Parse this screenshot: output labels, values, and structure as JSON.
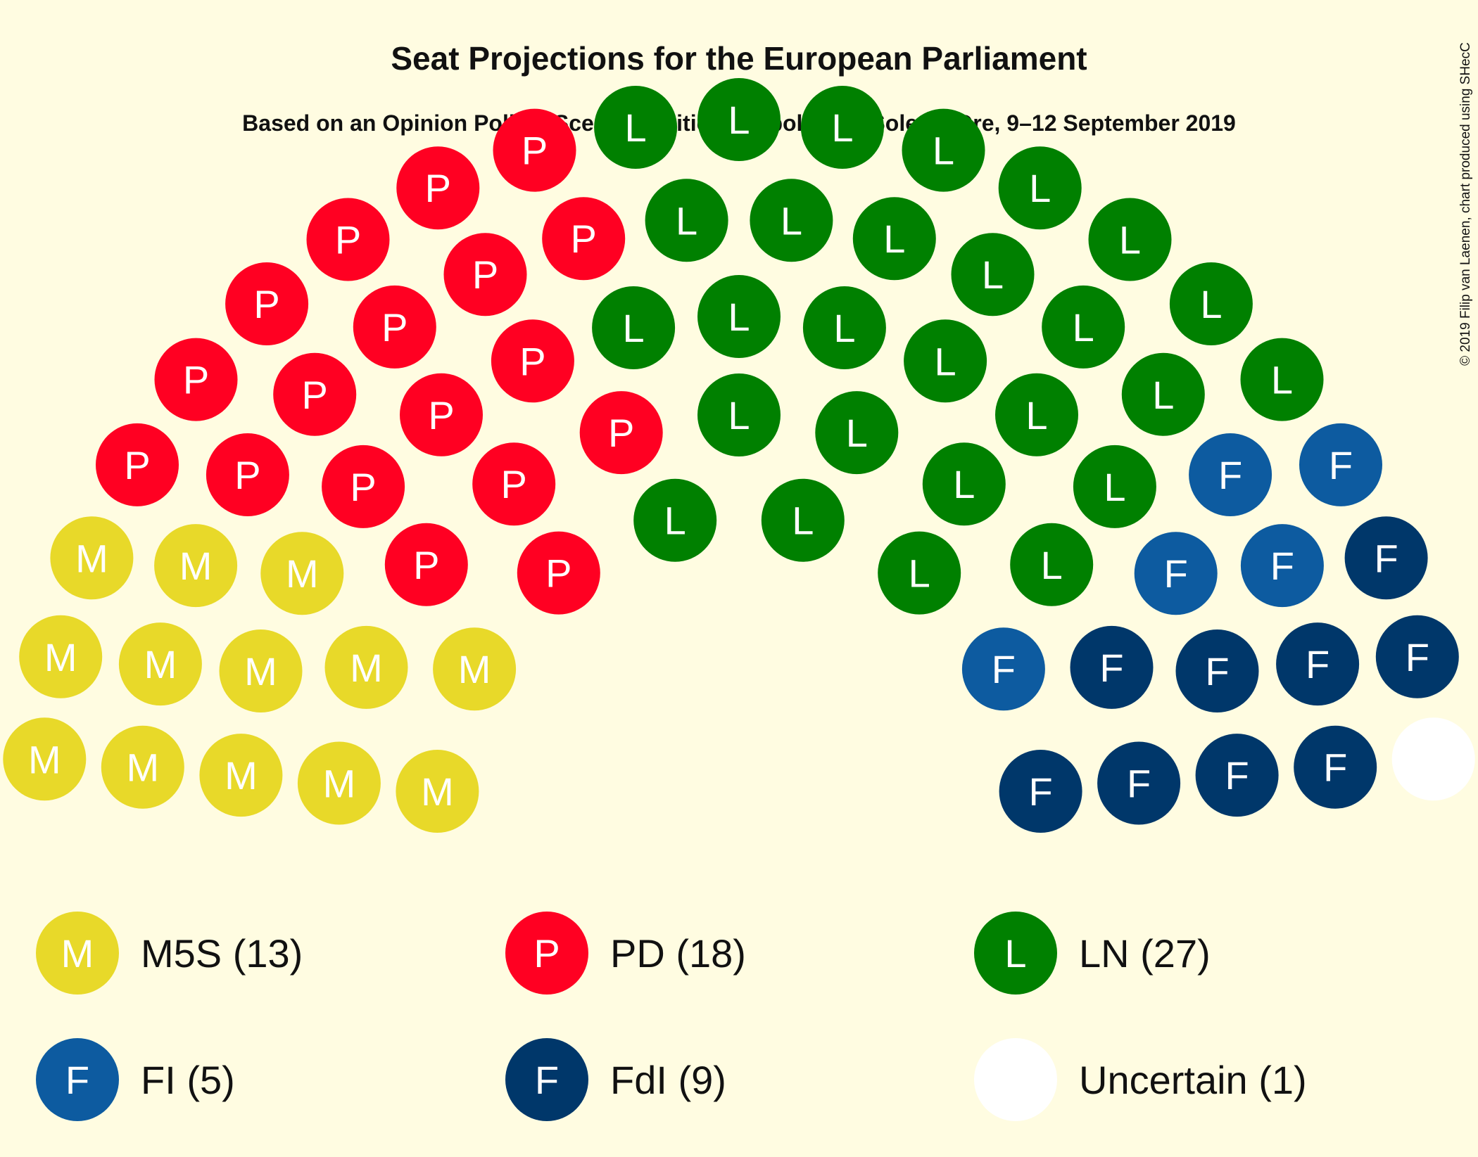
{
  "chart_data": {
    "type": "parliament",
    "title": "Seat Projections for the European Parliament",
    "subtitle": "Based on an Opinion Poll by Scenari Politici–Winpoll for Il Sole 24 Ore, 9–12 September 2019",
    "copyright": "© 2019 Filip van Laenen, chart produced using SHecC",
    "parties": [
      {
        "name": "M5S",
        "letter": "M",
        "seats": 13,
        "color": "#E8D929",
        "label": "M5S (13)"
      },
      {
        "name": "PD",
        "letter": "P",
        "seats": 18,
        "color": "#FF0022",
        "label": "PD (18)"
      },
      {
        "name": "LN",
        "letter": "L",
        "seats": 27,
        "color": "#008000",
        "label": "LN (27)"
      },
      {
        "name": "FI",
        "letter": "F",
        "seats": 5,
        "color": "#0D5BA0",
        "label": "FI (5)"
      },
      {
        "name": "FdI",
        "letter": "F",
        "seats": 9,
        "color": "#00376A",
        "label": "FdI (9)"
      },
      {
        "name": "Uncertain",
        "letter": "",
        "seats": 1,
        "color": "#FFFFFF",
        "label": "Uncertain (1)"
      }
    ],
    "total_seats": 73
  }
}
